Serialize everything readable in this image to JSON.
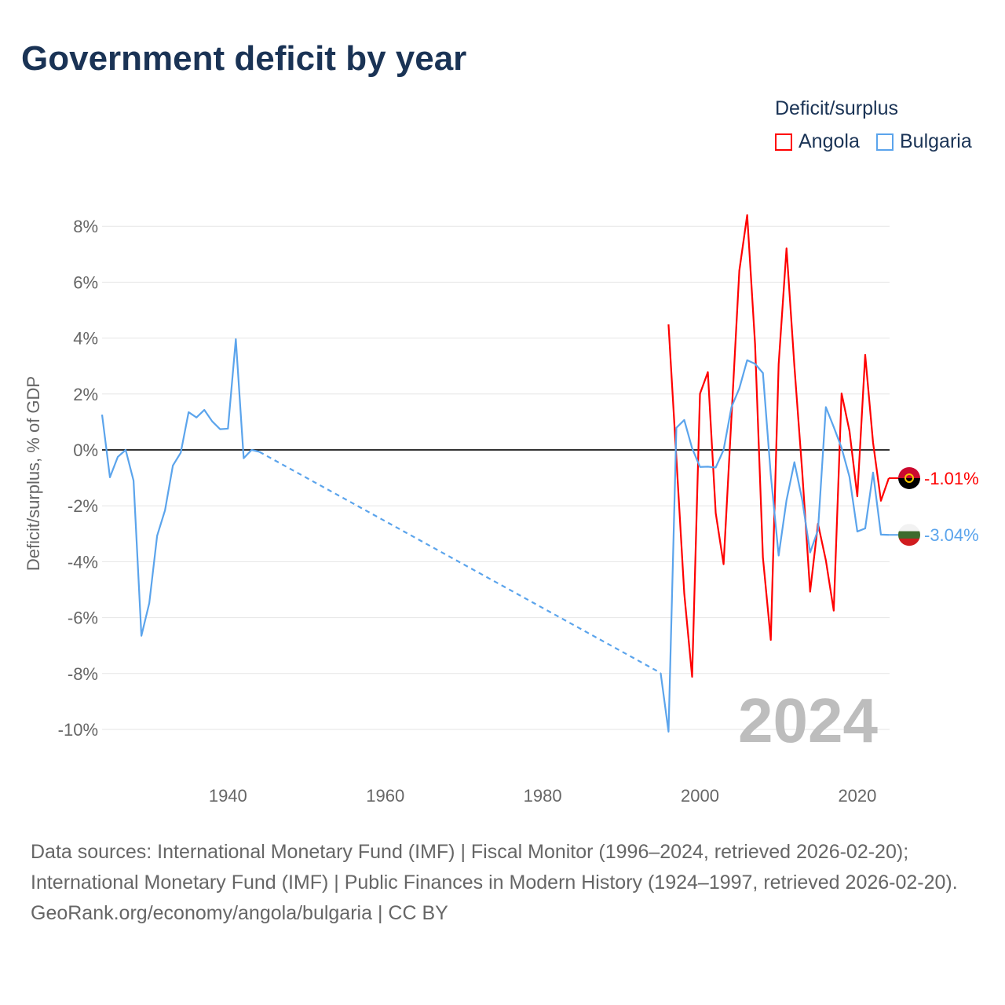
{
  "title": "Government deficit by year",
  "footer": {
    "sources": "Data sources: International Monetary Fund (IMF) | Fiscal Monitor (1996–2024, retrieved 2026-02-20); International Monetary Fund (IMF) | Public Finances in Modern History (1924–1997, retrieved 2026-02-20).",
    "credit": "GeoRank.org/economy/angola/bulgaria | CC BY"
  },
  "chart_data": {
    "type": "line",
    "title": "Government deficit by year",
    "ylabel": "Deficit/surplus, % of GDP",
    "xlabel": "",
    "legend_title": "Deficit/surplus",
    "legend_position": "top-right",
    "current_year_label": "2024",
    "xlim": [
      1924,
      2024
    ],
    "ylim": [
      -10,
      8
    ],
    "xticks": [
      1940,
      1960,
      1980,
      2000,
      2020
    ],
    "xtick_labels": [
      "1940",
      "1960",
      "1980",
      "2000",
      "2020"
    ],
    "yticks": [
      8,
      6,
      4,
      2,
      0,
      -2,
      -4,
      -6,
      -8,
      -10
    ],
    "ytick_labels": [
      "8%",
      "6%",
      "4%",
      "2%",
      "0%",
      "-2%",
      "-4%",
      "-6%",
      "-8%",
      "-10%"
    ],
    "grid": true,
    "series": [
      {
        "name": "Angola",
        "color": "#ff0000",
        "end_label": "-1.01%",
        "x": [
          1996,
          1997,
          1998,
          1999,
          2000,
          2001,
          2002,
          2003,
          2004,
          2005,
          2006,
          2007,
          2008,
          2009,
          2010,
          2011,
          2012,
          2013,
          2014,
          2015,
          2016,
          2017,
          2018,
          2019,
          2020,
          2021,
          2022,
          2023,
          2024
        ],
        "values": [
          4.49,
          -0.3,
          -5.13,
          -8.12,
          2.01,
          2.78,
          -2.26,
          -4.09,
          1.16,
          6.41,
          8.4,
          3.79,
          -3.85,
          -6.8,
          3.07,
          7.21,
          3.0,
          -0.8,
          -5.07,
          -2.64,
          -3.95,
          -5.75,
          2.02,
          0.68,
          -1.66,
          3.4,
          0.26,
          -1.82,
          -1.01
        ]
      },
      {
        "name": "Bulgaria",
        "color": "#5ba4ec",
        "end_label": "-3.04%",
        "x": [
          1924,
          1925,
          1926,
          1927,
          1928,
          1929,
          1930,
          1931,
          1932,
          1933,
          1934,
          1935,
          1936,
          1937,
          1938,
          1939,
          1940,
          1941,
          1942,
          1943,
          1944,
          1995,
          1996,
          1997,
          1998,
          1999,
          2000,
          2001,
          2002,
          2003,
          2004,
          2005,
          2006,
          2007,
          2008,
          2009,
          2010,
          2011,
          2012,
          2013,
          2014,
          2015,
          2016,
          2017,
          2018,
          2019,
          2020,
          2021,
          2022,
          2023,
          2024
        ],
        "values": [
          1.26,
          -0.98,
          -0.25,
          0,
          -1.1,
          -6.65,
          -5.48,
          -3.07,
          -2.16,
          -0.56,
          -0.1,
          1.35,
          1.16,
          1.43,
          1.02,
          0.74,
          0.76,
          3.96,
          -0.3,
          0,
          -0.07,
          -7.98,
          -10.08,
          0.79,
          1.07,
          0.06,
          -0.61,
          -0.6,
          -0.63,
          0.0,
          1.53,
          2.2,
          3.21,
          3.08,
          2.75,
          -0.9,
          -3.78,
          -1.8,
          -0.44,
          -1.8,
          -3.67,
          -2.87,
          1.53,
          0.82,
          0.07,
          -0.96,
          -2.92,
          -2.81,
          -0.81,
          -3.03,
          -3.04
        ]
      }
    ]
  }
}
